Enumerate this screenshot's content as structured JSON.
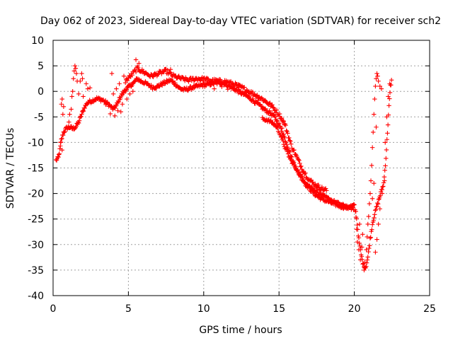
{
  "chart_data": {
    "type": "scatter",
    "title": "Day 062 of 2023, Sidereal Day-to-day VTEC variation (SDTVAR) for receiver sch2",
    "xlabel": "GPS time / hours",
    "ylabel": "SDTVAR / TECUs",
    "xlim": [
      0,
      25
    ],
    "ylim": [
      -40,
      10
    ],
    "xticks": [
      0,
      5,
      10,
      15,
      20,
      25
    ],
    "yticks": [
      -40,
      -35,
      -30,
      -25,
      -20,
      -15,
      -10,
      -5,
      0,
      5,
      10
    ],
    "grid": true,
    "marker": "plus",
    "color": "#ff0000",
    "series": [
      {
        "name": "SDTVAR",
        "trace": [
          [
            0.2,
            -13.5
          ],
          [
            0.35,
            -13.0
          ],
          [
            0.45,
            -11.5
          ],
          [
            0.55,
            -9.5
          ],
          [
            0.7,
            -8.0
          ],
          [
            0.9,
            -7.2
          ],
          [
            1.1,
            -7.0
          ],
          [
            1.3,
            -7.3
          ],
          [
            1.5,
            -7.0
          ],
          [
            1.7,
            -6.0
          ],
          [
            1.9,
            -4.5
          ],
          [
            2.1,
            -3.0
          ],
          [
            2.3,
            -2.2
          ],
          [
            2.6,
            -1.8
          ],
          [
            2.9,
            -1.4
          ],
          [
            3.3,
            -1.7
          ],
          [
            3.7,
            -2.6
          ],
          [
            4.0,
            -3.5
          ],
          [
            4.2,
            -2.8
          ],
          [
            4.4,
            -1.5
          ],
          [
            4.6,
            -0.5
          ],
          [
            4.8,
            0.3
          ],
          [
            5.0,
            0.8
          ],
          [
            5.2,
            1.3
          ],
          [
            5.4,
            1.8
          ],
          [
            5.6,
            2.5
          ],
          [
            5.8,
            2.0
          ],
          [
            6.0,
            1.8
          ],
          [
            6.3,
            1.3
          ],
          [
            6.6,
            0.8
          ],
          [
            6.9,
            0.9
          ],
          [
            7.2,
            1.4
          ],
          [
            7.5,
            1.8
          ],
          [
            7.8,
            2.2
          ],
          [
            8.1,
            1.5
          ],
          [
            8.4,
            0.6
          ],
          [
            8.7,
            0.3
          ],
          [
            9.0,
            0.5
          ],
          [
            9.3,
            0.8
          ],
          [
            9.6,
            1.0
          ],
          [
            9.9,
            1.2
          ],
          [
            10.2,
            1.3
          ],
          [
            10.5,
            1.5
          ],
          [
            10.8,
            1.6
          ],
          [
            11.1,
            1.7
          ],
          [
            11.4,
            1.5
          ],
          [
            11.7,
            1.0
          ],
          [
            12.0,
            0.5
          ],
          [
            12.3,
            0.0
          ],
          [
            12.6,
            -0.5
          ],
          [
            12.9,
            -1.0
          ],
          [
            13.2,
            -1.6
          ],
          [
            13.5,
            -2.3
          ],
          [
            13.8,
            -3.0
          ],
          [
            14.1,
            -3.7
          ],
          [
            14.4,
            -4.2
          ],
          [
            14.7,
            -5.0
          ],
          [
            15.0,
            -6.5
          ],
          [
            15.3,
            -8.5
          ],
          [
            15.6,
            -11.0
          ],
          [
            15.9,
            -13.5
          ],
          [
            16.2,
            -15.5
          ],
          [
            16.5,
            -17.0
          ],
          [
            16.8,
            -18.3
          ],
          [
            17.1,
            -19.3
          ],
          [
            17.4,
            -20.2
          ],
          [
            17.7,
            -20.8
          ],
          [
            18.0,
            -21.3
          ],
          [
            18.3,
            -21.6
          ],
          [
            18.6,
            -22.0
          ],
          [
            18.9,
            -22.3
          ],
          [
            19.2,
            -22.6
          ],
          [
            19.5,
            -22.7
          ],
          [
            19.8,
            -22.5
          ],
          [
            20.0,
            -22.4
          ],
          [
            20.15,
            -25.0
          ],
          [
            20.3,
            -29.0
          ],
          [
            20.45,
            -32.0
          ],
          [
            20.6,
            -34.0
          ],
          [
            20.75,
            -34.5
          ],
          [
            20.9,
            -32.5
          ],
          [
            21.05,
            -29.0
          ],
          [
            21.2,
            -26.0
          ],
          [
            21.35,
            -24.0
          ],
          [
            21.5,
            -22.5
          ],
          [
            21.65,
            -21.0
          ],
          [
            21.8,
            -19.5
          ],
          [
            21.95,
            -18.0
          ],
          [
            22.1,
            -13.0
          ],
          [
            22.2,
            -8.0
          ],
          [
            22.3,
            -3.0
          ],
          [
            22.4,
            1.0
          ],
          [
            22.5,
            2.5
          ]
        ],
        "upper_trace": [
          [
            4.8,
            2.0
          ],
          [
            5.2,
            3.2
          ],
          [
            5.6,
            4.5
          ],
          [
            6.0,
            3.8
          ],
          [
            6.5,
            3.0
          ],
          [
            7.0,
            3.5
          ],
          [
            7.5,
            4.0
          ],
          [
            8.0,
            3.0
          ],
          [
            8.5,
            2.5
          ],
          [
            9.0,
            2.2
          ],
          [
            9.5,
            2.5
          ],
          [
            10.0,
            2.4
          ],
          [
            10.5,
            2.1
          ],
          [
            11.0,
            2.0
          ],
          [
            11.5,
            1.9
          ],
          [
            12.0,
            1.4
          ],
          [
            12.5,
            0.8
          ],
          [
            13.0,
            0.0
          ],
          [
            13.5,
            -0.8
          ],
          [
            14.0,
            -1.7
          ],
          [
            14.5,
            -2.8
          ],
          [
            15.0,
            -4.5
          ],
          [
            15.4,
            -6.5
          ],
          [
            15.8,
            -10.5
          ],
          [
            16.2,
            -13.0
          ],
          [
            16.6,
            -15.5
          ],
          [
            17.0,
            -17.3
          ],
          [
            17.4,
            -18.3
          ],
          [
            17.8,
            -19.0
          ],
          [
            18.2,
            -19.4
          ]
        ],
        "lower_trace": [
          [
            13.9,
            -5.4
          ],
          [
            14.2,
            -5.6
          ],
          [
            14.5,
            -6.0
          ],
          [
            14.8,
            -6.8
          ],
          [
            15.1,
            -8.5
          ],
          [
            15.4,
            -11.0
          ],
          [
            15.7,
            -13.0
          ],
          [
            16.0,
            -14.5
          ],
          [
            16.4,
            -16.3
          ],
          [
            16.8,
            -18.0
          ],
          [
            17.2,
            -19.0
          ],
          [
            17.6,
            -19.8
          ],
          [
            18.0,
            -20.6
          ],
          [
            18.4,
            -21.2
          ],
          [
            18.8,
            -21.8
          ],
          [
            19.2,
            -22.3
          ],
          [
            19.6,
            -22.8
          ],
          [
            20.0,
            -23.0
          ]
        ],
        "bursts": [
          [
            0.55,
            -2.5
          ],
          [
            0.6,
            -1.5
          ],
          [
            0.65,
            -4.5
          ],
          [
            0.7,
            -3.0
          ],
          [
            0.5,
            -10.0
          ],
          [
            0.6,
            -11.5
          ],
          [
            1.2,
            -3.5
          ],
          [
            1.25,
            -1.0
          ],
          [
            1.3,
            0.0
          ],
          [
            1.35,
            2.5
          ],
          [
            1.4,
            4.0
          ],
          [
            1.45,
            5.0
          ],
          [
            1.5,
            4.5
          ],
          [
            1.55,
            3.5
          ],
          [
            1.6,
            2.0
          ],
          [
            1.7,
            -0.5
          ],
          [
            1.8,
            2.0
          ],
          [
            1.9,
            3.5
          ],
          [
            1.95,
            2.5
          ],
          [
            2.0,
            -1.0
          ],
          [
            2.2,
            1.5
          ],
          [
            2.3,
            0.5
          ],
          [
            2.45,
            0.7
          ],
          [
            1.1,
            -4.5
          ],
          [
            1.05,
            -6.0
          ],
          [
            3.5,
            -2.6
          ],
          [
            3.8,
            -4.4
          ],
          [
            4.1,
            -4.8
          ],
          [
            4.3,
            -3.8
          ],
          [
            4.5,
            -4.0
          ],
          [
            4.6,
            -2.5
          ],
          [
            4.0,
            -0.5
          ],
          [
            4.2,
            0.5
          ],
          [
            4.4,
            1.5
          ],
          [
            4.9,
            -1.5
          ],
          [
            5.1,
            -0.5
          ],
          [
            5.3,
            0.0
          ],
          [
            3.9,
            3.5
          ],
          [
            4.7,
            3.0
          ],
          [
            5.5,
            6.2
          ],
          [
            5.7,
            5.5
          ],
          [
            6.7,
            3.2
          ],
          [
            7.8,
            4.3
          ],
          [
            10.7,
            0.5
          ],
          [
            11.2,
            0.9
          ],
          [
            11.6,
            0.4
          ],
          [
            12.3,
            0.8
          ],
          [
            13.6,
            -1.8
          ],
          [
            15.2,
            -7.2
          ],
          [
            20.1,
            -23.5
          ],
          [
            20.15,
            -27.0
          ],
          [
            20.2,
            -29.5
          ],
          [
            20.3,
            -31.0
          ],
          [
            20.35,
            -26.0
          ],
          [
            20.4,
            -33.0
          ],
          [
            20.5,
            -30.5
          ],
          [
            20.55,
            -28.0
          ],
          [
            20.65,
            -35.0
          ],
          [
            20.7,
            -33.5
          ],
          [
            20.8,
            -31.0
          ],
          [
            20.85,
            -28.5
          ],
          [
            20.9,
            -26.0
          ],
          [
            20.95,
            -24.5
          ],
          [
            21.0,
            -22.0
          ],
          [
            21.05,
            -20.0
          ],
          [
            21.1,
            -17.5
          ],
          [
            21.15,
            -14.5
          ],
          [
            21.2,
            -11.0
          ],
          [
            21.25,
            -8.0
          ],
          [
            21.3,
            -4.5
          ],
          [
            21.35,
            -1.5
          ],
          [
            21.4,
            1.0
          ],
          [
            21.45,
            2.5
          ],
          [
            21.5,
            3.5
          ],
          [
            21.55,
            3.0
          ],
          [
            21.6,
            2.0
          ],
          [
            21.7,
            1.0
          ],
          [
            21.8,
            0.5
          ],
          [
            21.45,
            -7.0
          ],
          [
            21.3,
            -18.0
          ],
          [
            21.2,
            -21.0
          ],
          [
            21.6,
            -26.0
          ],
          [
            21.5,
            -29.0
          ],
          [
            21.4,
            -31.5
          ],
          [
            21.7,
            -23.0
          ],
          [
            21.85,
            -20.0
          ],
          [
            22.0,
            -17.5
          ],
          [
            22.05,
            -10.0
          ],
          [
            22.15,
            -5.0
          ],
          [
            22.25,
            -1.0
          ],
          [
            22.35,
            1.5
          ]
        ]
      }
    ]
  }
}
